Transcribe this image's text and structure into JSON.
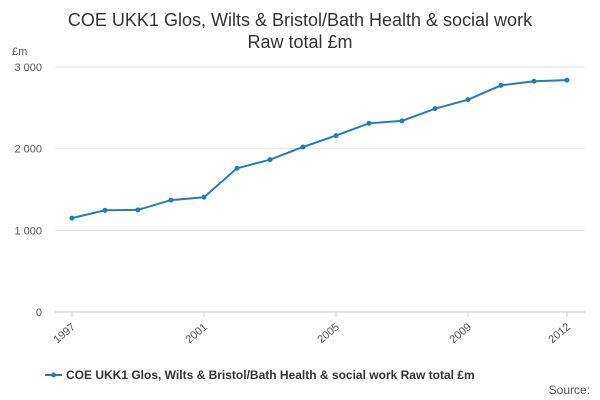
{
  "chart_data": {
    "type": "line",
    "title_line1": "COE UKK1 Glos, Wilts & Bristol/Bath Health & social work",
    "title_line2": "Raw total £m",
    "y_unit": "£m",
    "ylim": [
      0,
      3000
    ],
    "y_ticks": [
      0,
      1000,
      2000,
      3000
    ],
    "y_tick_labels": [
      "0",
      "1 000",
      "2 000",
      "3 000"
    ],
    "x_tick_labels": [
      {
        "x": 1997,
        "label": "1997"
      },
      {
        "x": 2001,
        "label": "2001"
      },
      {
        "x": 2005,
        "label": "2005"
      },
      {
        "x": 2009,
        "label": "2009"
      },
      {
        "x": 2012,
        "label": "2012"
      }
    ],
    "xlim": [
      1997,
      2012
    ],
    "grid": "horizontal",
    "legend_position": "bottom",
    "series": [
      {
        "name": "COE UKK1 Glos, Wilts & Bristol/Bath Health & social work Raw total £m",
        "color": "#1f7fb8",
        "x": [
          1997,
          1998,
          1999,
          2000,
          2001,
          2002,
          2003,
          2004,
          2005,
          2006,
          2007,
          2008,
          2009,
          2010,
          2011,
          2012
        ],
        "values": [
          1150,
          1245,
          1250,
          1370,
          1405,
          1760,
          1865,
          2020,
          2160,
          2310,
          2340,
          2490,
          2600,
          2775,
          2825,
          2840
        ]
      }
    ],
    "source_label": "Source:"
  }
}
